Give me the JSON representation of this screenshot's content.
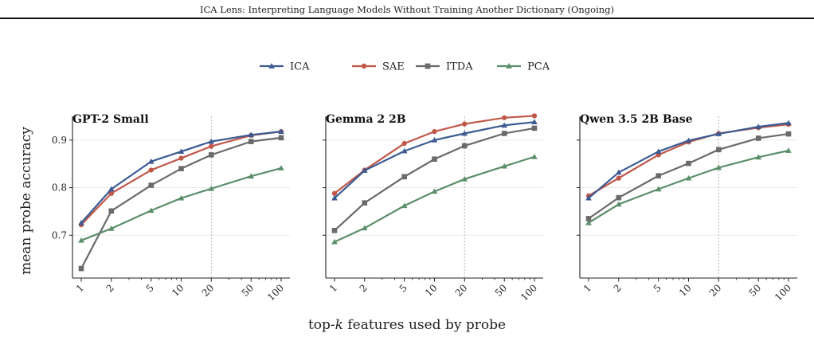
{
  "header": {
    "title": "ICA Lens: Interpreting Language Models Without Training Another Dictionary (Ongoing)"
  },
  "legend": [
    "ICA",
    "SAE",
    "ITDA",
    "PCA"
  ],
  "series_style": {
    "ICA": {
      "color": "#3b5b92",
      "marker": "triangle"
    },
    "SAE": {
      "color": "#c0584a",
      "marker": "circle"
    },
    "ITDA": {
      "color": "#6a6a6a",
      "marker": "square"
    },
    "PCA": {
      "color": "#5b8f6a",
      "marker": "triangle"
    }
  },
  "chart_data": [
    {
      "type": "line",
      "title": "GPT-2 Small",
      "xlabel": "top-k features used by probe",
      "ylabel": "mean probe accuracy",
      "xscale": "log",
      "x": [
        1,
        2,
        5,
        10,
        20,
        50,
        100
      ],
      "xticks": [
        "1",
        "2",
        "5",
        "10",
        "20",
        "50",
        "100"
      ],
      "yticks": [
        "0.7",
        "0.8",
        "0.9"
      ],
      "ylim": [
        0.61,
        0.95
      ],
      "reference_line_x": 20,
      "series": [
        {
          "name": "ICA",
          "values": [
            0.726,
            0.797,
            0.855,
            0.876,
            0.897,
            0.911,
            0.918
          ]
        },
        {
          "name": "SAE",
          "values": [
            0.722,
            0.788,
            0.837,
            0.862,
            0.887,
            0.91,
            0.918
          ]
        },
        {
          "name": "ITDA",
          "values": [
            0.63,
            0.751,
            0.805,
            0.84,
            0.869,
            0.897,
            0.905
          ]
        },
        {
          "name": "PCA",
          "values": [
            0.689,
            0.714,
            0.752,
            0.778,
            0.798,
            0.824,
            0.841
          ]
        }
      ]
    },
    {
      "type": "line",
      "title": "Gemma 2 2B",
      "xscale": "log",
      "x": [
        1,
        2,
        5,
        10,
        20,
        50,
        100
      ],
      "xticks": [
        "1",
        "2",
        "5",
        "10",
        "20",
        "50",
        "100"
      ],
      "yticks": [
        "0.7",
        "0.8",
        "0.9"
      ],
      "ylim": [
        0.61,
        0.95
      ],
      "reference_line_x": 20,
      "series": [
        {
          "name": "ICA",
          "values": [
            0.778,
            0.836,
            0.877,
            0.9,
            0.914,
            0.931,
            0.938
          ]
        },
        {
          "name": "SAE",
          "values": [
            0.788,
            0.837,
            0.893,
            0.918,
            0.934,
            0.947,
            0.951
          ]
        },
        {
          "name": "ITDA",
          "values": [
            0.71,
            0.768,
            0.823,
            0.86,
            0.888,
            0.914,
            0.925
          ]
        },
        {
          "name": "PCA",
          "values": [
            0.686,
            0.715,
            0.762,
            0.792,
            0.818,
            0.845,
            0.865
          ]
        }
      ]
    },
    {
      "type": "line",
      "title": "Qwen 3.5 2B Base",
      "xscale": "log",
      "x": [
        1,
        2,
        5,
        10,
        20,
        50,
        100
      ],
      "xticks": [
        "1",
        "2",
        "5",
        "10",
        "20",
        "50",
        "100"
      ],
      "yticks": [
        "0.7",
        "0.8",
        "0.9"
      ],
      "ylim": [
        0.61,
        0.95
      ],
      "reference_line_x": 20,
      "series": [
        {
          "name": "ICA",
          "values": [
            0.778,
            0.832,
            0.876,
            0.899,
            0.913,
            0.928,
            0.936
          ]
        },
        {
          "name": "SAE",
          "values": [
            0.783,
            0.82,
            0.869,
            0.896,
            0.914,
            0.926,
            0.933
          ]
        },
        {
          "name": "ITDA",
          "values": [
            0.735,
            0.779,
            0.825,
            0.851,
            0.88,
            0.904,
            0.913
          ]
        },
        {
          "name": "PCA",
          "values": [
            0.726,
            0.765,
            0.797,
            0.82,
            0.842,
            0.864,
            0.878
          ]
        }
      ]
    }
  ]
}
